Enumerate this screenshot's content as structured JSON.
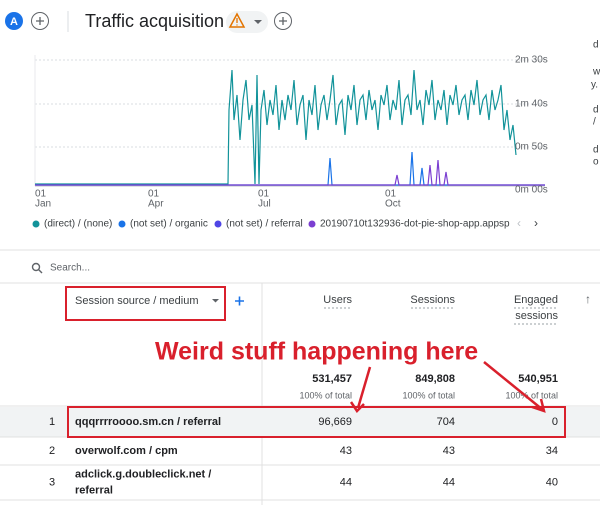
{
  "header": {
    "avatar": "A",
    "title": "Traffic acquisition"
  },
  "chart": {
    "y_axis_labels": [
      "2m 30s",
      "1m 40s",
      "0m 50s",
      "0m 00s"
    ],
    "x_axis_labels": [
      {
        "day": "01",
        "month": "Jan"
      },
      {
        "day": "01",
        "month": "Apr"
      },
      {
        "day": "01",
        "month": "Jul"
      },
      {
        "day": "01",
        "month": "Oct"
      }
    ],
    "legend": [
      "(direct) / (none)",
      "(not set) / organic",
      "(not set) / referral",
      "20190710t132936-dot-pie-shop-app.appsp"
    ]
  },
  "side_snippets": [
    "d",
    "w",
    "y.",
    "d",
    "/",
    "d",
    "o"
  ],
  "search": {
    "placeholder": "Search..."
  },
  "table": {
    "dimension": "Session source / medium",
    "columns": [
      [
        "Users"
      ],
      [
        "Sessions"
      ],
      [
        "Engaged",
        "sessions"
      ]
    ],
    "totals": [
      {
        "value": "531,457",
        "note": "100% of total"
      },
      {
        "value": "849,808",
        "note": "100% of total"
      },
      {
        "value": "540,951",
        "note": "100% of total"
      }
    ],
    "rows": [
      {
        "rank": "1",
        "source": [
          "qqqrrrroooo.sm.cn / referral"
        ],
        "cells": [
          "96,669",
          "704",
          "0"
        ]
      },
      {
        "rank": "2",
        "source": [
          "overwolf.com / cpm"
        ],
        "cells": [
          "43",
          "43",
          "34"
        ]
      },
      {
        "rank": "3",
        "source": [
          "adclick.g.doubleclick.net /",
          "referral"
        ],
        "cells": [
          "44",
          "44",
          "40"
        ]
      }
    ]
  },
  "annotation": "Weird stuff happening here"
}
